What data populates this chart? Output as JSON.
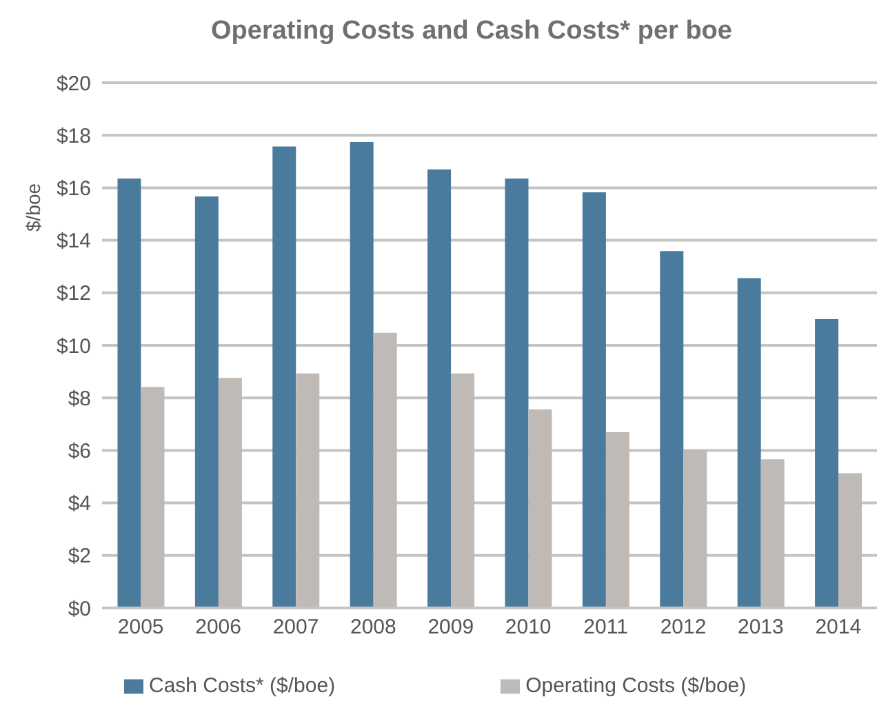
{
  "chart_data": {
    "type": "bar",
    "title": "Operating Costs and Cash Costs* per boe",
    "ylabel": "$/boe",
    "categories": [
      "2005",
      "2006",
      "2007",
      "2008",
      "2009",
      "2010",
      "2011",
      "2012",
      "2013",
      "2014"
    ],
    "series": [
      {
        "name": "Cash Costs* ($/boe)",
        "color": "#4a7b9d",
        "values": [
          16.35,
          15.67,
          17.57,
          17.74,
          16.7,
          16.35,
          15.83,
          13.59,
          12.56,
          11.0
        ]
      },
      {
        "name": "Operating Costs ($/boe)",
        "color": "#bfbab6",
        "values": [
          8.41,
          8.76,
          8.93,
          10.48,
          8.93,
          7.56,
          6.69,
          6.01,
          5.66,
          5.13
        ]
      }
    ],
    "ylim": [
      0,
      20
    ],
    "yticks": [
      {
        "value": 0,
        "label": "$0"
      },
      {
        "value": 2,
        "label": "$2"
      },
      {
        "value": 4,
        "label": "$4"
      },
      {
        "value": 6,
        "label": "$6"
      },
      {
        "value": 8,
        "label": "$8"
      },
      {
        "value": 10,
        "label": "$10"
      },
      {
        "value": 12,
        "label": "$12"
      },
      {
        "value": 14,
        "label": "$14"
      },
      {
        "value": 16,
        "label": "$16"
      },
      {
        "value": 18,
        "label": "$18"
      },
      {
        "value": 20,
        "label": "$20"
      }
    ],
    "grid": "y",
    "legend": "bottom"
  }
}
